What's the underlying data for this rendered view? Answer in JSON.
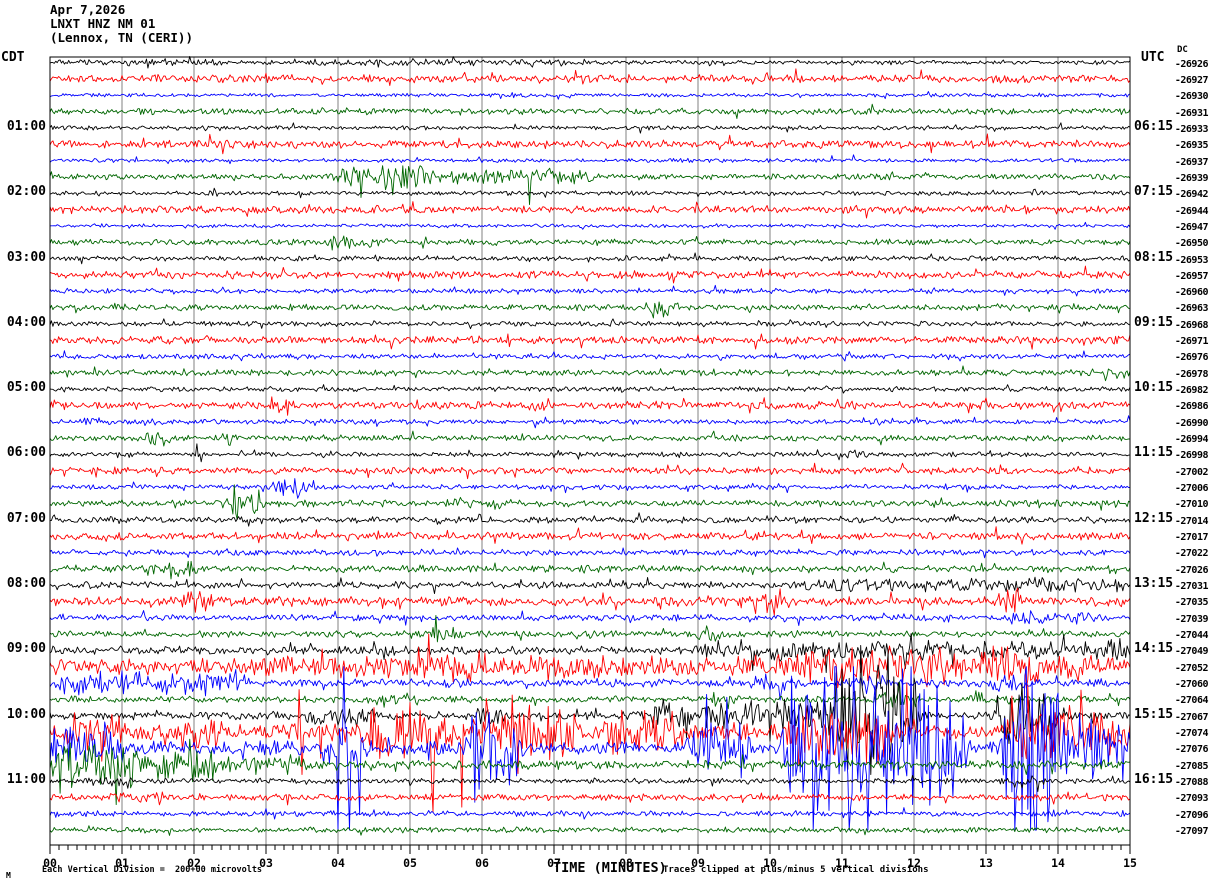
{
  "header": {
    "date": "Apr 7,2026",
    "station": "LNXT HNZ NM 01",
    "location": "(Lennox, TN (CERI))"
  },
  "left_axis": {
    "tz": "CDT",
    "hour_labels": [
      {
        "row": 4,
        "text": "01:00"
      },
      {
        "row": 8,
        "text": "02:00"
      },
      {
        "row": 12,
        "text": "03:00"
      },
      {
        "row": 16,
        "text": "04:00"
      },
      {
        "row": 20,
        "text": "05:00"
      },
      {
        "row": 24,
        "text": "06:00"
      },
      {
        "row": 28,
        "text": "07:00"
      },
      {
        "row": 32,
        "text": "08:00"
      },
      {
        "row": 36,
        "text": "09:00"
      },
      {
        "row": 40,
        "text": "10:00"
      },
      {
        "row": 44,
        "text": "11:00"
      }
    ]
  },
  "right_axis": {
    "tz": "UTC",
    "dc_label": "DC",
    "hour_labels": [
      {
        "row": 4,
        "text": "06:15"
      },
      {
        "row": 8,
        "text": "07:15"
      },
      {
        "row": 12,
        "text": "08:15"
      },
      {
        "row": 16,
        "text": "09:15"
      },
      {
        "row": 20,
        "text": "10:15"
      },
      {
        "row": 24,
        "text": "11:15"
      },
      {
        "row": 28,
        "text": "12:15"
      },
      {
        "row": 32,
        "text": "13:15"
      },
      {
        "row": 36,
        "text": "14:15"
      },
      {
        "row": 40,
        "text": "15:15"
      },
      {
        "row": 44,
        "text": "16:15"
      }
    ]
  },
  "bottom_axis": {
    "title": "TIME (MINUTES)",
    "tick_labels": [
      "00",
      "01",
      "02",
      "03",
      "04",
      "05",
      "06",
      "07",
      "08",
      "09",
      "10",
      "11",
      "12",
      "13",
      "14",
      "15"
    ]
  },
  "footer": {
    "left_note": "Each Vertical Division =  200+00 microvolts",
    "right_note": "Traces clipped at plus/minus 5 vertical divisions",
    "corner_mark": "M"
  },
  "colors": {
    "black": "#000000",
    "red": "#ff0000",
    "blue": "#0000ff",
    "green": "#006600",
    "grid": "#808080",
    "background": "#ffffff"
  },
  "chart_data": {
    "type": "line",
    "subtype": "helicorder-seismogram",
    "title": "LNXT HNZ NM 01 (Lennox, TN (CERI)) Apr 7,2026",
    "xlabel": "TIME (MINUTES)",
    "x_range": [
      0,
      15
    ],
    "minutes_per_row": 15,
    "rows": 48,
    "clip_divisions": 5,
    "division_scale_text": "200+00 microvolts",
    "color_cycle": [
      "black",
      "red",
      "blue",
      "green"
    ],
    "grid": true,
    "minor_ticks_per_minute": 8,
    "traces": [
      {
        "row": 0,
        "color": "black",
        "value": "-26926",
        "base_amp": 0.08,
        "events": [
          [
            0.2,
            2.4,
            0.05
          ],
          [
            3.5,
            7.6,
            0.04
          ]
        ],
        "spikes": []
      },
      {
        "row": 1,
        "color": "red",
        "value": "-26927",
        "base_amp": 0.15,
        "events": [],
        "spikes": []
      },
      {
        "row": 2,
        "color": "blue",
        "value": "-26930",
        "base_amp": 0.07,
        "events": [],
        "spikes": []
      },
      {
        "row": 3,
        "color": "green",
        "value": "-26931",
        "base_amp": 0.11,
        "events": [],
        "spikes": []
      },
      {
        "row": 4,
        "color": "black",
        "value": "-26933",
        "base_amp": 0.08,
        "events": [],
        "spikes": []
      },
      {
        "row": 5,
        "color": "red",
        "value": "-26935",
        "base_amp": 0.15,
        "events": [],
        "spikes": []
      },
      {
        "row": 6,
        "color": "blue",
        "value": "-26937",
        "base_amp": 0.07,
        "events": [],
        "spikes": [
          [
            10.85,
            0.3
          ],
          [
            11.15,
            0.35
          ]
        ]
      },
      {
        "row": 7,
        "color": "green",
        "value": "-26939",
        "base_amp": 0.11,
        "events": [
          [
            3.95,
            5.3,
            0.3
          ],
          [
            5.3,
            7.5,
            0.15
          ]
        ],
        "spikes": [
          [
            4.75,
            -1.1
          ],
          [
            4.8,
            0.5
          ],
          [
            4.95,
            -0.7
          ],
          [
            6.65,
            -1.7
          ],
          [
            6.7,
            0.3
          ]
        ]
      },
      {
        "row": 8,
        "color": "black",
        "value": "-26942",
        "base_amp": 0.08,
        "events": [],
        "spikes": []
      },
      {
        "row": 9,
        "color": "red",
        "value": "-26944",
        "base_amp": 0.14,
        "events": [],
        "spikes": []
      },
      {
        "row": 10,
        "color": "blue",
        "value": "-26947",
        "base_amp": 0.07,
        "events": [],
        "spikes": []
      },
      {
        "row": 11,
        "color": "green",
        "value": "-26950",
        "base_amp": 0.11,
        "events": [
          [
            3.9,
            4.6,
            0.15
          ]
        ],
        "spikes": []
      },
      {
        "row": 12,
        "color": "black",
        "value": "-26953",
        "base_amp": 0.09,
        "events": [],
        "spikes": []
      },
      {
        "row": 13,
        "color": "red",
        "value": "-26957",
        "base_amp": 0.14,
        "events": [],
        "spikes": [
          [
            10.0,
            0.35
          ]
        ]
      },
      {
        "row": 14,
        "color": "blue",
        "value": "-26960",
        "base_amp": 0.09,
        "events": [],
        "spikes": []
      },
      {
        "row": 15,
        "color": "green",
        "value": "-26963",
        "base_amp": 0.11,
        "events": [
          [
            8.3,
            8.65,
            0.35
          ]
        ],
        "spikes": []
      },
      {
        "row": 16,
        "color": "black",
        "value": "-26968",
        "base_amp": 0.09,
        "events": [],
        "spikes": []
      },
      {
        "row": 17,
        "color": "red",
        "value": "-26971",
        "base_amp": 0.14,
        "events": [],
        "spikes": []
      },
      {
        "row": 18,
        "color": "blue",
        "value": "-26976",
        "base_amp": 0.09,
        "events": [],
        "spikes": []
      },
      {
        "row": 19,
        "color": "green",
        "value": "-26978",
        "base_amp": 0.11,
        "events": [
          [
            14.5,
            15,
            0.2
          ]
        ],
        "spikes": []
      },
      {
        "row": 20,
        "color": "black",
        "value": "-26982",
        "base_amp": 0.09,
        "events": [],
        "spikes": []
      },
      {
        "row": 21,
        "color": "red",
        "value": "-26986",
        "base_amp": 0.14,
        "events": [
          [
            3.1,
            3.35,
            0.12
          ],
          [
            6.7,
            7.0,
            0.18
          ]
        ],
        "spikes": []
      },
      {
        "row": 22,
        "color": "blue",
        "value": "-26990",
        "base_amp": 0.09,
        "events": [
          [
            0.3,
            1.6,
            0.06
          ],
          [
            11.3,
            11.6,
            0.15
          ]
        ],
        "spikes": []
      },
      {
        "row": 23,
        "color": "green",
        "value": "-26994",
        "base_amp": 0.11,
        "events": [
          [
            1.3,
            1.75,
            0.18
          ],
          [
            2.4,
            2.65,
            0.15
          ]
        ],
        "spikes": []
      },
      {
        "row": 24,
        "color": "black",
        "value": "-26998",
        "base_amp": 0.09,
        "events": [
          [
            10.9,
            11.35,
            0.14
          ]
        ],
        "spikes": [
          [
            2.05,
            0.65
          ],
          [
            2.1,
            -0.45
          ],
          [
            2.65,
            0.25
          ]
        ]
      },
      {
        "row": 25,
        "color": "red",
        "value": "-27002",
        "base_amp": 0.13,
        "events": [],
        "spikes": []
      },
      {
        "row": 26,
        "color": "blue",
        "value": "-27006",
        "base_amp": 0.09,
        "events": [
          [
            3.15,
            3.55,
            0.3
          ]
        ],
        "spikes": [
          [
            3.65,
            0.4
          ]
        ]
      },
      {
        "row": 27,
        "color": "green",
        "value": "-27010",
        "base_amp": 0.12,
        "events": [
          [
            2.45,
            3.0,
            0.4
          ],
          [
            5.5,
            5.8,
            0.12
          ],
          [
            6.2,
            6.55,
            0.15
          ]
        ],
        "spikes": [
          [
            2.6,
            -1.0
          ]
        ]
      },
      {
        "row": 28,
        "color": "black",
        "value": "-27014",
        "base_amp": 0.12,
        "events": [],
        "spikes": []
      },
      {
        "row": 29,
        "color": "red",
        "value": "-27017",
        "base_amp": 0.14,
        "events": [
          [
            9.7,
            10.1,
            0.12
          ]
        ],
        "spikes": []
      },
      {
        "row": 30,
        "color": "blue",
        "value": "-27022",
        "base_amp": 0.11,
        "events": [],
        "spikes": []
      },
      {
        "row": 31,
        "color": "green",
        "value": "-27026",
        "base_amp": 0.12,
        "events": [
          [
            1.35,
            2.0,
            0.25
          ]
        ],
        "spikes": []
      },
      {
        "row": 32,
        "color": "black",
        "value": "-27031",
        "base_amp": 0.13,
        "events": [
          [
            10.5,
            15,
            0.12
          ]
        ],
        "spikes": [
          [
            1.9,
            0.35
          ]
        ]
      },
      {
        "row": 33,
        "color": "red",
        "value": "-27035",
        "base_amp": 0.17,
        "events": [
          [
            1.9,
            2.25,
            0.3
          ],
          [
            9.6,
            10.1,
            0.3
          ],
          [
            13.2,
            13.55,
            0.3
          ]
        ],
        "spikes": [
          [
            13.3,
            0.7
          ]
        ]
      },
      {
        "row": 34,
        "color": "blue",
        "value": "-27039",
        "base_amp": 0.12,
        "events": [
          [
            13.2,
            14.6,
            0.12
          ]
        ],
        "spikes": []
      },
      {
        "row": 35,
        "color": "green",
        "value": "-27044",
        "base_amp": 0.12,
        "events": [
          [
            5.3,
            5.65,
            0.25
          ],
          [
            8.9,
            9.4,
            0.2
          ]
        ],
        "spikes": []
      },
      {
        "row": 36,
        "color": "black",
        "value": "-27049",
        "base_amp": 0.14,
        "events": [
          [
            4.35,
            4.75,
            0.25
          ],
          [
            9.0,
            15,
            0.22
          ]
        ],
        "spikes": []
      },
      {
        "row": 37,
        "color": "red",
        "value": "-27052",
        "base_amp": 0.3,
        "events": [
          [
            3.0,
            15,
            0.1
          ],
          [
            5.2,
            6.2,
            0.2
          ],
          [
            10.4,
            12.6,
            0.4
          ],
          [
            13.0,
            13.7,
            0.4
          ]
        ],
        "spikes": [
          [
            12.35,
            1.2
          ],
          [
            13.4,
            0.8
          ]
        ]
      },
      {
        "row": 38,
        "color": "blue",
        "value": "-27060",
        "base_amp": 0.15,
        "events": [
          [
            0.0,
            2.8,
            0.3
          ],
          [
            9.8,
            10.25,
            0.22
          ],
          [
            11.2,
            11.55,
            0.28
          ],
          [
            13.15,
            13.45,
            0.28
          ]
        ],
        "spikes": []
      },
      {
        "row": 39,
        "color": "green",
        "value": "-27064",
        "base_amp": 0.12,
        "events": [
          [
            4.5,
            5.1,
            0.15
          ],
          [
            9.2,
            9.55,
            0.22
          ],
          [
            11.5,
            11.85,
            0.22
          ],
          [
            12.7,
            13.05,
            0.18
          ]
        ],
        "spikes": []
      },
      {
        "row": 40,
        "color": "black",
        "value": "-27067",
        "base_amp": 0.15,
        "events": [
          [
            3.6,
            4.5,
            0.25
          ],
          [
            5.9,
            6.35,
            0.2
          ],
          [
            8.35,
            9.45,
            0.55
          ],
          [
            9.6,
            10.85,
            0.45
          ],
          [
            10.9,
            12.05,
            2.0
          ],
          [
            13.2,
            13.95,
            1.0
          ]
        ],
        "spikes": [
          [
            11.25,
            4.3
          ],
          [
            11.4,
            -3.6
          ],
          [
            11.5,
            3.1
          ],
          [
            11.65,
            -2.7
          ],
          [
            13.5,
            2.0
          ]
        ]
      },
      {
        "row": 41,
        "color": "red",
        "value": "-27074",
        "base_amp": 0.33,
        "events": [
          [
            0.25,
            0.95,
            0.45
          ],
          [
            1.75,
            2.35,
            0.45
          ],
          [
            4.4,
            5.6,
            0.7
          ],
          [
            6.0,
            7.3,
            0.65
          ],
          [
            7.7,
            8.7,
            0.55
          ],
          [
            10.3,
            11.7,
            0.85
          ],
          [
            13.3,
            15,
            0.7
          ]
        ],
        "spikes": [
          [
            3.45,
            2.6
          ],
          [
            3.5,
            -2.6
          ],
          [
            3.75,
            -1.6
          ],
          [
            5.0,
            1.8
          ],
          [
            5.32,
            -4.9
          ],
          [
            5.72,
            -4.6
          ],
          [
            11.9,
            3.0
          ],
          [
            13.35,
            2.2
          ]
        ]
      },
      {
        "row": 42,
        "color": "blue",
        "value": "-27076",
        "base_amp": 0.28,
        "events": [
          [
            0,
            1.0,
            0.55
          ],
          [
            3.9,
            4.4,
            1.0
          ],
          [
            5.8,
            6.5,
            1.3
          ],
          [
            8.9,
            9.7,
            0.8
          ],
          [
            10.2,
            12.7,
            2.4
          ],
          [
            13.25,
            14.15,
            3.0
          ],
          [
            14.2,
            15,
            1.1
          ]
        ],
        "spikes": [
          [
            4.0,
            -5
          ],
          [
            4.08,
            5
          ],
          [
            4.16,
            -5
          ],
          [
            4.3,
            -4
          ],
          [
            5.95,
            -2.5
          ],
          [
            6.1,
            2.2
          ],
          [
            10.6,
            -5
          ],
          [
            10.9,
            5
          ],
          [
            11.1,
            -5
          ],
          [
            13.4,
            -5
          ],
          [
            13.55,
            5
          ],
          [
            13.7,
            -5
          ],
          [
            13.85,
            -4.5
          ]
        ]
      },
      {
        "row": 43,
        "color": "green",
        "value": "-27085",
        "base_amp": 0.16,
        "events": [
          [
            0,
            1.2,
            0.8
          ],
          [
            1.2,
            2.4,
            0.4
          ],
          [
            2.4,
            3.6,
            0.2
          ]
        ],
        "spikes": [
          [
            0.3,
            -1.4
          ],
          [
            0.7,
            -1.2
          ],
          [
            1.5,
            -0.9
          ],
          [
            2.2,
            -0.8
          ],
          [
            3.3,
            -0.6
          ],
          [
            13.55,
            -0.6
          ]
        ]
      },
      {
        "row": 44,
        "color": "black",
        "value": "-27088",
        "base_amp": 0.1,
        "events": [
          [
            0.5,
            1.1,
            0.1
          ],
          [
            13.25,
            13.8,
            0.15
          ]
        ],
        "spikes": []
      },
      {
        "row": 45,
        "color": "red",
        "value": "-27093",
        "base_amp": 0.12,
        "events": [
          [
            0.9,
            1.6,
            0.1
          ]
        ],
        "spikes": []
      },
      {
        "row": 46,
        "color": "blue",
        "value": "-27096",
        "base_amp": 0.1,
        "events": [],
        "spikes": []
      },
      {
        "row": 47,
        "color": "green",
        "value": "-27097",
        "base_amp": 0.1,
        "events": [],
        "spikes": []
      }
    ]
  }
}
